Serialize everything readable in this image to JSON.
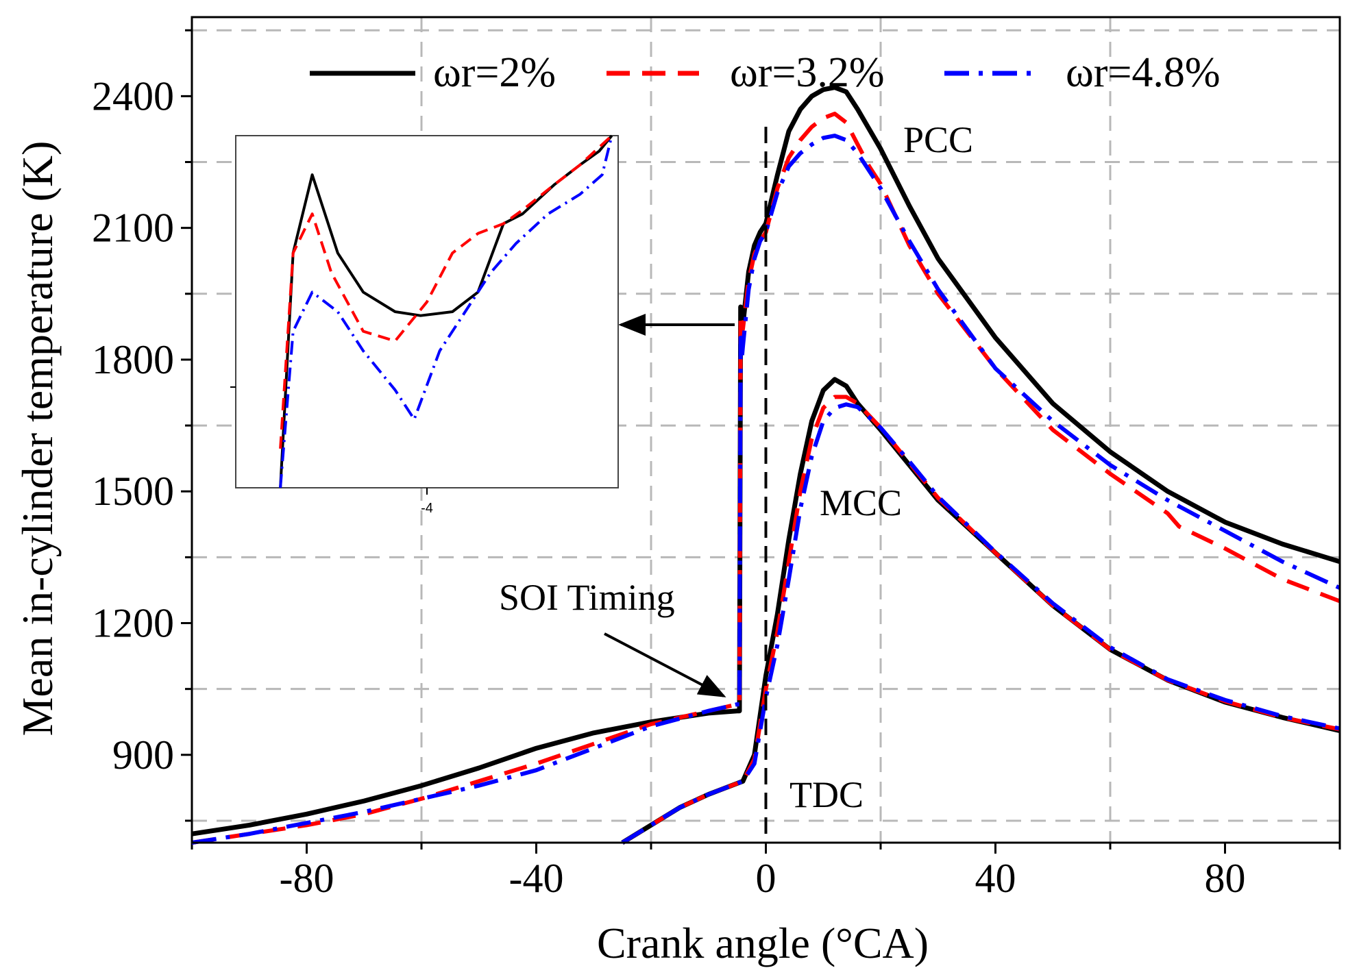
{
  "chart_data": {
    "type": "line",
    "xlabel": "Crank angle (°CA)",
    "ylabel": "Mean in-cylinder temperature (K)",
    "xlim": [
      -100,
      100
    ],
    "ylim": [
      700,
      2580
    ],
    "x_ticks": [
      -80,
      -40,
      0,
      40,
      80
    ],
    "y_ticks": [
      900,
      1200,
      1500,
      1800,
      2100,
      2400
    ],
    "grid": true,
    "legend_position": "top",
    "colors": {
      "w2": "#000000",
      "w32": "#ff0000",
      "w48": "#0000ff"
    },
    "series": [
      {
        "name": "ωr=2%",
        "group": "PCC",
        "key": "w2",
        "style": "solid",
        "x": [
          -100,
          -90,
          -80,
          -70,
          -60,
          -50,
          -40,
          -30,
          -20,
          -10,
          -5,
          -4.6,
          -4.4,
          -4.2,
          -4,
          -3,
          -2,
          -1,
          0,
          2,
          4,
          6,
          8,
          10,
          12,
          14,
          16,
          20,
          25,
          30,
          40,
          50,
          60,
          70,
          80,
          90,
          100
        ],
        "y": [
          720,
          740,
          765,
          795,
          830,
          870,
          915,
          950,
          975,
          995,
          1000,
          1000,
          1920,
          1890,
          1880,
          2000,
          2060,
          2090,
          2110,
          2220,
          2320,
          2370,
          2400,
          2415,
          2420,
          2410,
          2370,
          2280,
          2150,
          2030,
          1850,
          1700,
          1590,
          1500,
          1430,
          1380,
          1340
        ]
      },
      {
        "name": "ωr=3.2%",
        "group": "PCC",
        "key": "w32",
        "style": "dashed",
        "x": [
          -100,
          -90,
          -80,
          -70,
          -60,
          -50,
          -40,
          -30,
          -20,
          -10,
          -5,
          -4.6,
          -4.4,
          -4.2,
          -4,
          -3,
          -2,
          -1,
          0,
          2,
          4,
          6,
          8,
          10,
          12,
          14,
          16,
          18,
          20,
          25,
          30,
          40,
          50,
          60,
          70,
          72,
          80,
          90,
          100
        ],
        "y": [
          700,
          720,
          740,
          765,
          800,
          840,
          880,
          925,
          970,
          1000,
          1015,
          1015,
          1900,
          1860,
          1870,
          1980,
          2040,
          2070,
          2090,
          2190,
          2260,
          2300,
          2330,
          2350,
          2360,
          2340,
          2290,
          2240,
          2200,
          2060,
          1950,
          1780,
          1640,
          1540,
          1450,
          1420,
          1370,
          1300,
          1250
        ]
      },
      {
        "name": "ωr=4.8%",
        "group": "PCC",
        "key": "w48",
        "style": "dashdot",
        "x": [
          -100,
          -90,
          -80,
          -70,
          -60,
          -50,
          -40,
          -30,
          -20,
          -10,
          -5,
          -4.6,
          -4.4,
          -4.2,
          -4,
          -3,
          -2,
          -1,
          0,
          2,
          4,
          6,
          8,
          10,
          12,
          14,
          16,
          18,
          20,
          25,
          30,
          40,
          50,
          60,
          70,
          80,
          90,
          100
        ],
        "y": [
          700,
          720,
          745,
          770,
          800,
          830,
          865,
          915,
          965,
          1000,
          1015,
          1015,
          1850,
          1800,
          1830,
          1960,
          2030,
          2070,
          2090,
          2180,
          2240,
          2270,
          2290,
          2305,
          2310,
          2300,
          2270,
          2230,
          2190,
          2070,
          1960,
          1780,
          1660,
          1560,
          1480,
          1410,
          1340,
          1280
        ]
      },
      {
        "name": "ωr=2%",
        "group": "MCC",
        "key": "w2",
        "style": "solid",
        "x": [
          -25,
          -20,
          -15,
          -10,
          -5,
          -4,
          -2,
          0,
          2,
          4,
          6,
          8,
          10,
          12,
          14,
          16,
          20,
          25,
          30,
          40,
          50,
          60,
          70,
          80,
          90,
          100
        ],
        "y": [
          700,
          740,
          780,
          810,
          835,
          840,
          900,
          1080,
          1220,
          1390,
          1540,
          1660,
          1730,
          1755,
          1740,
          1700,
          1640,
          1560,
          1480,
          1360,
          1240,
          1140,
          1070,
          1020,
          985,
          955
        ]
      },
      {
        "name": "ωr=3.2%",
        "group": "MCC",
        "key": "w32",
        "style": "dashed",
        "x": [
          -25,
          -20,
          -15,
          -10,
          -5,
          -4,
          -2,
          0,
          2,
          4,
          6,
          8,
          10,
          12,
          14,
          16,
          20,
          25,
          30,
          40,
          50,
          60,
          70,
          80,
          90,
          100
        ],
        "y": [
          700,
          740,
          780,
          810,
          835,
          840,
          890,
          1050,
          1180,
          1340,
          1500,
          1620,
          1690,
          1715,
          1715,
          1700,
          1645,
          1565,
          1485,
          1360,
          1240,
          1140,
          1070,
          1022,
          985,
          958
        ]
      },
      {
        "name": "ωr=4.8%",
        "group": "MCC",
        "key": "w48",
        "style": "dashdot",
        "x": [
          -25,
          -20,
          -15,
          -10,
          -5,
          -4,
          -2,
          0,
          2,
          4,
          6,
          8,
          10,
          12,
          14,
          16,
          20,
          25,
          30,
          40,
          50,
          60,
          70,
          80,
          90,
          100
        ],
        "y": [
          700,
          740,
          780,
          810,
          835,
          840,
          880,
          1030,
          1150,
          1300,
          1460,
          1580,
          1660,
          1690,
          1698,
          1692,
          1645,
          1568,
          1488,
          1362,
          1245,
          1145,
          1072,
          1025,
          988,
          960
        ]
      }
    ],
    "annotations": {
      "pcc": "PCC",
      "mcc": "MCC",
      "tdc": "TDC",
      "soi": "SOI Timing"
    },
    "tdc_x": 0,
    "inset": {
      "xlim": [
        -4.6,
        -3.4
      ],
      "ylim": [
        1760,
        1940
      ],
      "x_tick": -4,
      "x_tick_label": "-4",
      "series": [
        {
          "key": "w2",
          "style": "solid",
          "x": [
            -4.46,
            -4.42,
            -4.36,
            -4.28,
            -4.2,
            -4.1,
            -4.02,
            -3.92,
            -3.84,
            -3.76,
            -3.7,
            -3.6,
            -3.52,
            -3.46,
            -3.42
          ],
          "y": [
            1760,
            1880,
            1920,
            1880,
            1860,
            1850,
            1848,
            1850,
            1860,
            1895,
            1900,
            1915,
            1925,
            1932,
            1940
          ]
        },
        {
          "key": "w32",
          "style": "dashed",
          "x": [
            -4.46,
            -4.42,
            -4.36,
            -4.3,
            -4.2,
            -4.1,
            -4.0,
            -3.92,
            -3.84,
            -3.76,
            -3.7,
            -3.6,
            -3.52,
            -3.42
          ],
          "y": [
            1780,
            1880,
            1900,
            1870,
            1840,
            1835,
            1855,
            1880,
            1890,
            1895,
            1902,
            1915,
            1925,
            1940
          ]
        },
        {
          "key": "w48",
          "style": "dashdot",
          "x": [
            -4.46,
            -4.42,
            -4.36,
            -4.28,
            -4.2,
            -4.1,
            -4.04,
            -3.96,
            -3.88,
            -3.8,
            -3.72,
            -3.62,
            -3.52,
            -3.45,
            -3.42
          ],
          "y": [
            1760,
            1840,
            1860,
            1850,
            1830,
            1810,
            1795,
            1830,
            1850,
            1870,
            1885,
            1900,
            1910,
            1920,
            1940
          ]
        }
      ]
    }
  }
}
